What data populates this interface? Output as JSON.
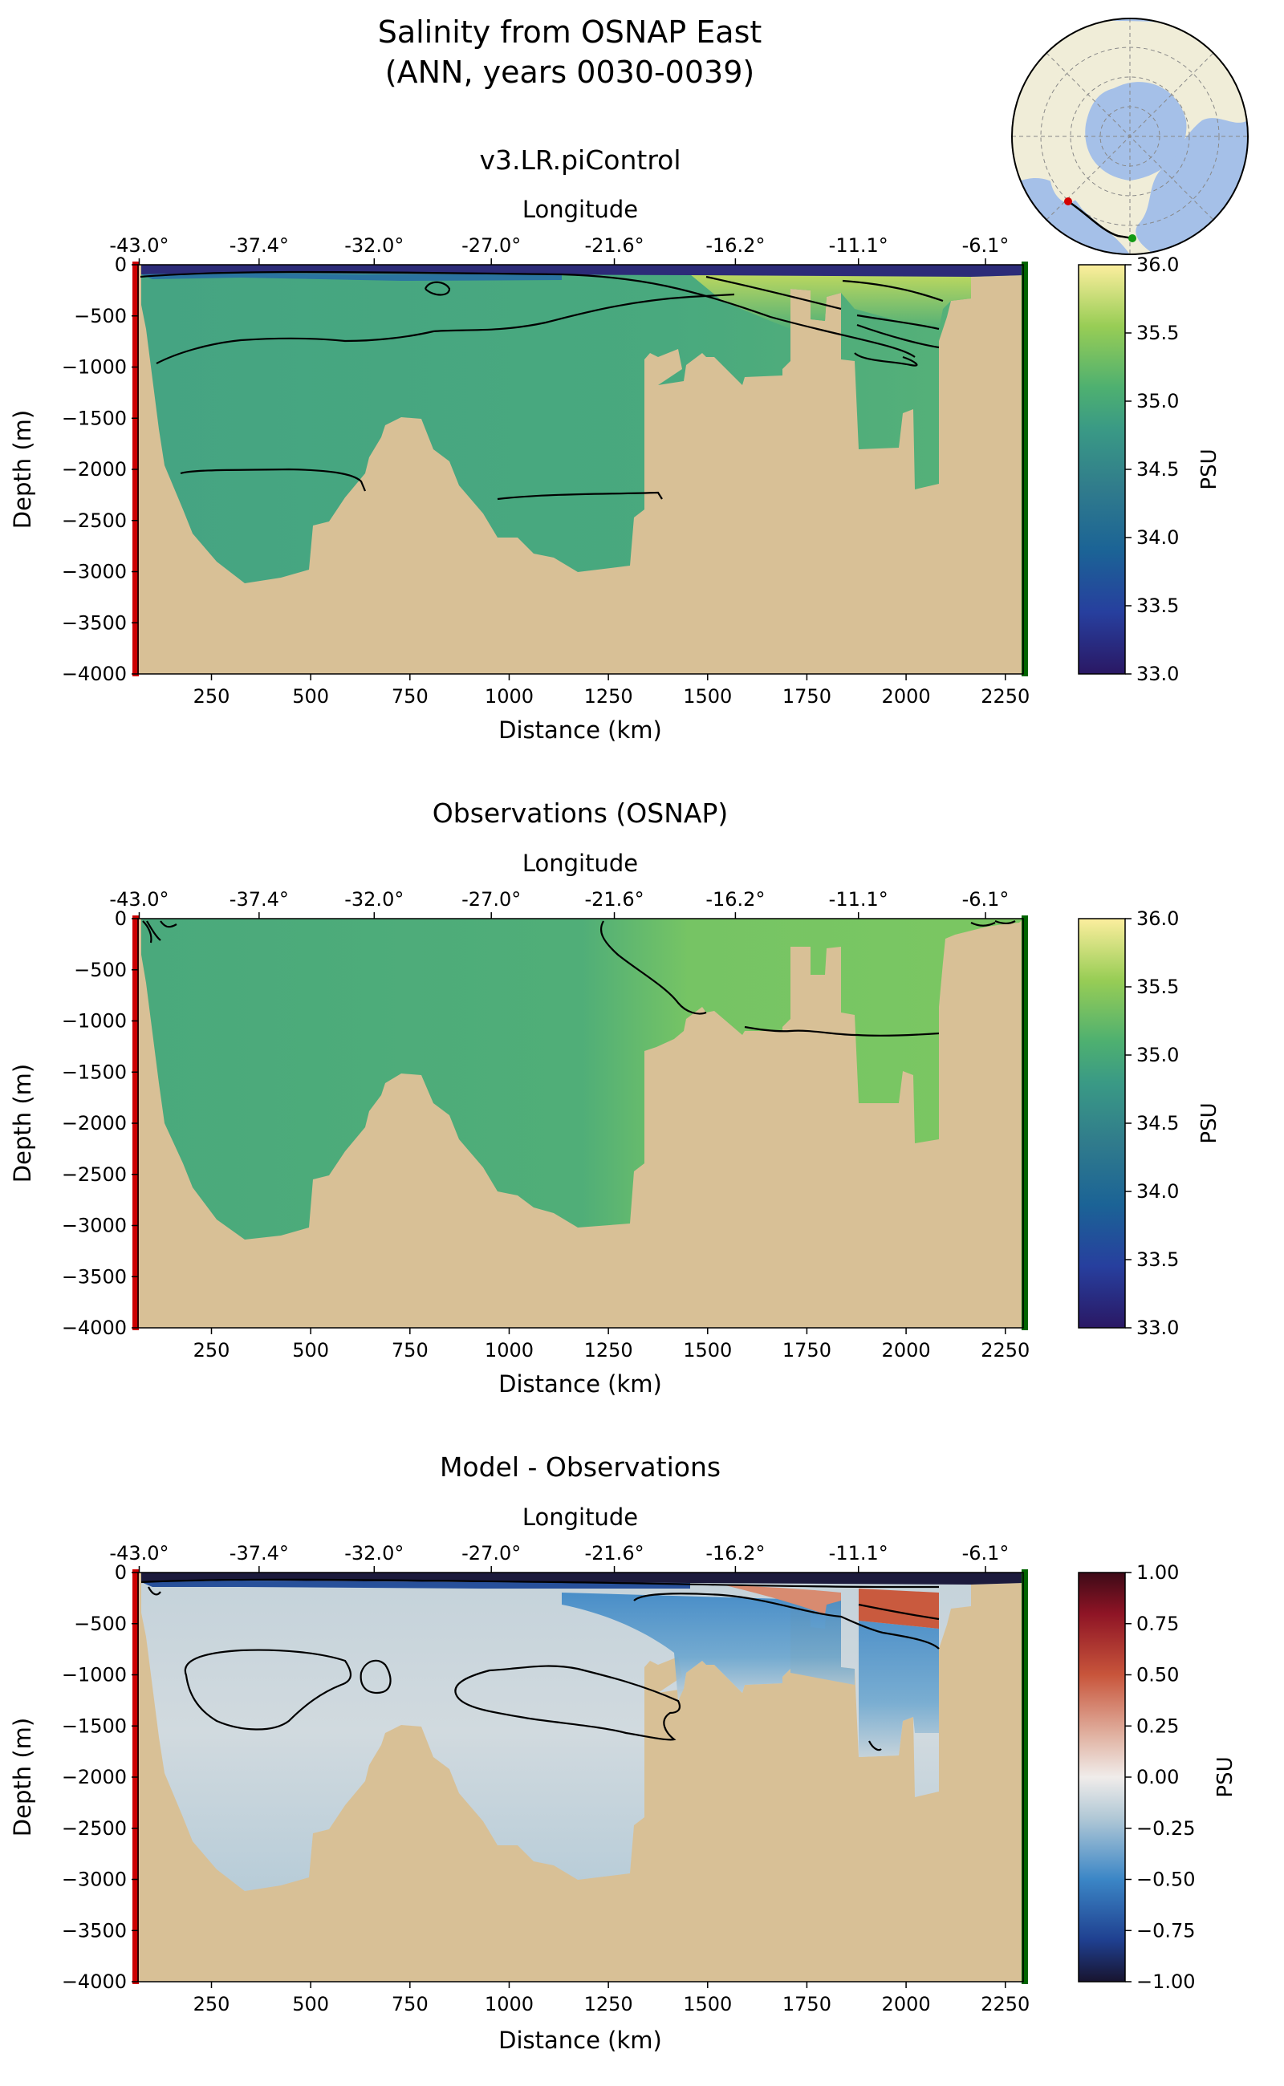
{
  "figure": {
    "title_line1": "Salinity from OSNAP East",
    "title_line2": "(ANN, years 0030-0039)"
  },
  "colors": {
    "bathymetry": "#d8c096",
    "west_marker": "#cc0000",
    "east_marker": "#006400",
    "contour": "#000000",
    "ocean_on_globe": "#a5c0e8",
    "land_on_globe": "#f0edd8"
  },
  "chart_data": [
    {
      "type": "heatmap",
      "panel": "model",
      "title": "v3.LR.piControl",
      "xlabel": "Distance (km)",
      "ylabel": "Depth (m)",
      "top_axis_label": "Longitude",
      "top_ticks": [
        "-43.0°",
        "-37.4°",
        "-32.0°",
        "-27.0°",
        "-21.6°",
        "-16.2°",
        "-11.1°",
        "-6.1°"
      ],
      "top_tick_km": [
        68,
        370,
        660,
        955,
        1265,
        1570,
        1880,
        2200
      ],
      "x_ticks": [
        250,
        500,
        750,
        1000,
        1250,
        1500,
        1750,
        2000,
        2250
      ],
      "y_ticks": [
        0,
        -500,
        -1000,
        -1500,
        -2000,
        -2500,
        -3000,
        -3500,
        -4000
      ],
      "xlim": [
        65,
        2295
      ],
      "ylim": [
        -4000,
        0
      ],
      "colorbar": {
        "label": "PSU",
        "range": [
          33.0,
          36.0
        ],
        "ticks": [
          "36.0",
          "35.5",
          "35.0",
          "34.5",
          "34.0",
          "33.5",
          "33.0"
        ],
        "colormap": "haline"
      },
      "field_summary": "Bulk ~34.9–35.0 PSU; fresh surface layer (<34) at top; saline >35.3 near surface at 1700–2100 km",
      "contour_levels": [
        34.9,
        35.0,
        35.1,
        35.2
      ]
    },
    {
      "type": "heatmap",
      "panel": "observations",
      "title": "Observations (OSNAP)",
      "xlabel": "Distance (km)",
      "ylabel": "Depth (m)",
      "top_axis_label": "Longitude",
      "top_ticks": [
        "-43.0°",
        "-37.4°",
        "-32.0°",
        "-27.0°",
        "-21.6°",
        "-16.2°",
        "-11.1°",
        "-6.1°"
      ],
      "top_tick_km": [
        68,
        370,
        660,
        955,
        1265,
        1570,
        1880,
        2200
      ],
      "x_ticks": [
        250,
        500,
        750,
        1000,
        1250,
        1500,
        1750,
        2000,
        2250
      ],
      "y_ticks": [
        0,
        -500,
        -1000,
        -1500,
        -2000,
        -2500,
        -3000,
        -3500,
        -4000
      ],
      "xlim": [
        65,
        2295
      ],
      "ylim": [
        -4000,
        0
      ],
      "colorbar": {
        "label": "PSU",
        "range": [
          33.0,
          36.0
        ],
        "ticks": [
          "36.0",
          "35.5",
          "35.0",
          "34.5",
          "34.0",
          "33.5",
          "33.0"
        ],
        "colormap": "haline"
      },
      "field_summary": "Bulk ~34.9–35.0 PSU; eastern upper ~35.2 PSU",
      "contour_levels": [
        35.0
      ]
    },
    {
      "type": "heatmap",
      "panel": "difference",
      "title": "Model - Observations",
      "xlabel": "Distance (km)",
      "ylabel": "Depth (m)",
      "top_axis_label": "Longitude",
      "top_ticks": [
        "-43.0°",
        "-37.4°",
        "-32.0°",
        "-27.0°",
        "-21.6°",
        "-16.2°",
        "-11.1°",
        "-6.1°"
      ],
      "top_tick_km": [
        68,
        370,
        660,
        955,
        1265,
        1570,
        1880,
        2200
      ],
      "x_ticks": [
        250,
        500,
        750,
        1000,
        1250,
        1500,
        1750,
        2000,
        2250
      ],
      "y_ticks": [
        0,
        -500,
        -1000,
        -1500,
        -2000,
        -2500,
        -3000,
        -3500,
        -4000
      ],
      "xlim": [
        65,
        2295
      ],
      "ylim": [
        -4000,
        0
      ],
      "colorbar": {
        "label": "PSU",
        "range": [
          -1.0,
          1.0
        ],
        "ticks": [
          "1.00",
          "0.75",
          "0.50",
          "0.25",
          "0.00",
          "−0.25",
          "−0.50",
          "−0.75",
          "−1.00"
        ],
        "colormap": "balance"
      },
      "field_summary": "Mostly slightly negative (−0.1 to −0.2); strong fresh bias at surface; −0.4 to −0.6 at 400–1500 m east of 1300 km; +0.3 to +0.5 near surface 1650–2100 km",
      "contour_levels": [
        -0.5,
        0.0
      ]
    }
  ]
}
